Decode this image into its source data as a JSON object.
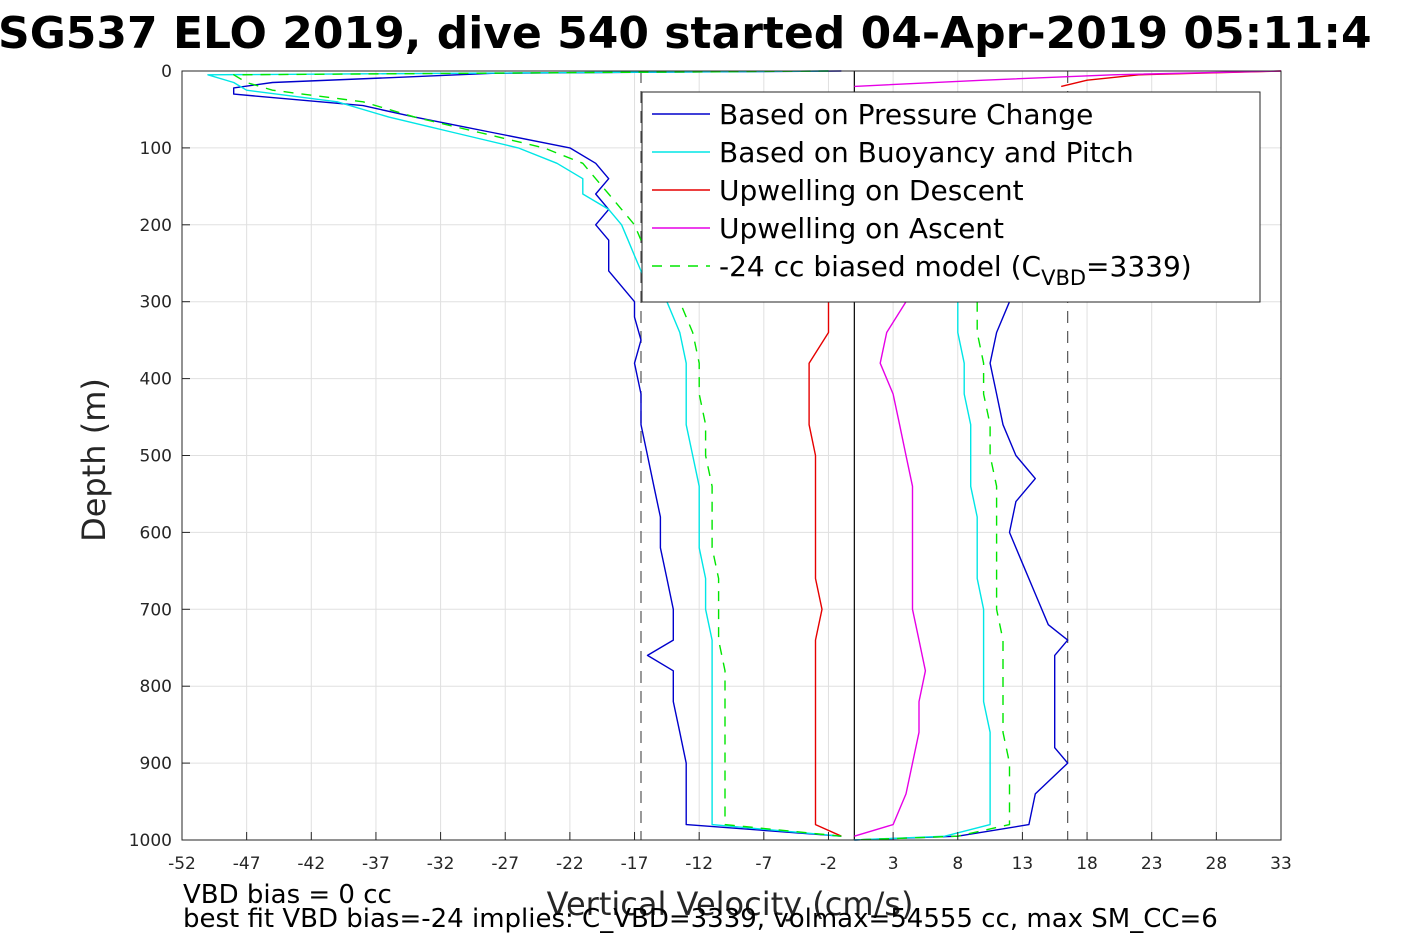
{
  "title": "SG537 ELO 2019, dive 540 started 04-Apr-2019 05:11:4",
  "notes": {
    "line1": "VBD bias = 0 cc",
    "line2": "best fit VBD bias=-24 implies: C_VBD=3339, volmax=54555 cc, max SM_CC=6"
  },
  "chart_data": {
    "type": "line",
    "title": "SG537 ELO 2019, dive 540 started 04-Apr-2019 05:11:4",
    "xlabel": "Vertical Velocity (cm/s)",
    "ylabel": "Depth (m)",
    "xlim": [
      -52,
      33
    ],
    "ylim": [
      1000,
      0
    ],
    "y_reversed": true,
    "grid": true,
    "legend_position": "top-right",
    "xticks": [
      "-52",
      "-47",
      "-42",
      "-37",
      "-32",
      "-27",
      "-22",
      "-17",
      "-12",
      "-7",
      "-2",
      "3",
      "8",
      "13",
      "18",
      "23",
      "28",
      "33"
    ],
    "yticks": [
      "0",
      "100",
      "200",
      "300",
      "400",
      "500",
      "600",
      "700",
      "800",
      "900",
      "1000"
    ],
    "reference_lines": [
      {
        "x": 0,
        "style": "solid",
        "color": "#000000"
      },
      {
        "x": -16.5,
        "style": "dashed",
        "color": "#555555"
      },
      {
        "x": 16.5,
        "style": "dashed",
        "color": "#555555"
      }
    ],
    "series": [
      {
        "name": "Based on Pressure Change",
        "color": "#0000cc",
        "dash": "",
        "segments": [
          {
            "depth": [
              0,
              3,
              8,
              15,
              22,
              30,
              45,
              60,
              80,
              100,
              120,
              140,
              160,
              180,
              200,
              220,
              240,
              260,
              280,
              300,
              320,
              350,
              380,
              420,
              460,
              500,
              540,
              580,
              620,
              660,
              700,
              740,
              760,
              780,
              820,
              860,
              900,
              940,
              980,
              995
            ],
            "v": [
              -1,
              -28,
              -35,
              -45,
              -48,
              -48,
              -38,
              -34,
              -28,
              -22,
              -20,
              -19,
              -20,
              -19,
              -20,
              -19,
              -19,
              -19,
              -18,
              -17,
              -17,
              -16.5,
              -17,
              -16.5,
              -16.5,
              -16,
              -15.5,
              -15,
              -15,
              -14.5,
              -14,
              -14,
              -16,
              -14,
              -14,
              -13.5,
              -13,
              -13,
              -13,
              -1
            ]
          },
          {
            "depth": [
              300,
              340,
              380,
              420,
              460,
              500,
              530,
              560,
              600,
              640,
              680,
              720,
              740,
              760,
              800,
              840,
              880,
              900,
              940,
              980,
              995,
              1000
            ],
            "v": [
              12,
              11,
              10.5,
              11,
              11.5,
              12.5,
              14,
              12.5,
              12,
              13,
              14,
              15,
              16.5,
              15.5,
              15.5,
              15.5,
              15.5,
              16.5,
              14,
              13.5,
              8,
              0
            ]
          }
        ]
      },
      {
        "name": "Based on Buoyancy and Pitch",
        "color": "#00e6e6",
        "dash": "",
        "segments": [
          {
            "depth": [
              0,
              5,
              15,
              25,
              40,
              60,
              80,
              100,
              120,
              140,
              160,
              180,
              200,
              220,
              240,
              260,
              280,
              300,
              340,
              380,
              420,
              460,
              500,
              540,
              580,
              620,
              660,
              700,
              740,
              780,
              820,
              860,
              900,
              940,
              980,
              995
            ],
            "v": [
              -2,
              -50,
              -48,
              -47,
              -40,
              -36,
              -31,
              -26,
              -23,
              -21,
              -21,
              -19,
              -18,
              -17.5,
              -17,
              -16.5,
              -16,
              -14.5,
              -13.5,
              -13,
              -13,
              -13,
              -12.5,
              -12,
              -12,
              -12,
              -11.5,
              -11.5,
              -11,
              -11,
              -11,
              -11,
              -11,
              -11,
              -11,
              -1
            ]
          },
          {
            "depth": [
              300,
              340,
              380,
              420,
              460,
              500,
              540,
              580,
              620,
              660,
              700,
              740,
              780,
              820,
              860,
              900,
              940,
              980,
              995,
              1000
            ],
            "v": [
              8,
              8,
              8.5,
              8.5,
              9,
              9,
              9,
              9.5,
              9.5,
              9.5,
              10,
              10,
              10,
              10,
              10.5,
              10.5,
              10.5,
              10.5,
              7,
              0
            ]
          }
        ]
      },
      {
        "name": "Upwelling on Descent",
        "color": "#e60000",
        "dash": "",
        "segments": [
          {
            "depth": [
              300,
              340,
              380,
              420,
              460,
              500,
              540,
              580,
              620,
              660,
              700,
              740,
              780,
              820,
              860,
              900,
              940,
              980,
              995
            ],
            "v": [
              -2,
              -2,
              -3.5,
              -3.5,
              -3.5,
              -3,
              -3,
              -3,
              -3,
              -3,
              -2.5,
              -3,
              -3,
              -3,
              -3,
              -3,
              -3,
              -3,
              -1
            ]
          },
          {
            "depth": [
              0,
              5,
              12,
              20
            ],
            "v": [
              33,
              22,
              18,
              16
            ]
          }
        ]
      },
      {
        "name": "Upwelling on Ascent",
        "color": "#e600e6",
        "dash": "",
        "segments": [
          {
            "depth": [
              300,
              340,
              380,
              420,
              460,
              500,
              540,
              580,
              620,
              660,
              700,
              740,
              780,
              820,
              860,
              900,
              940,
              980,
              995
            ],
            "v": [
              4,
              2.5,
              2,
              3,
              3.5,
              4,
              4.5,
              4.5,
              4.5,
              4.5,
              4.5,
              5,
              5.5,
              5,
              5,
              4.5,
              4,
              3,
              0
            ]
          },
          {
            "depth": [
              0,
              5,
              12,
              20
            ],
            "v": [
              33,
              20,
              10,
              0
            ]
          }
        ]
      },
      {
        "name": "-24 cc biased model (C_VBD=3339)",
        "color": "#00e600",
        "dash": "10,8",
        "segments": [
          {
            "depth": [
              0,
              5,
              15,
              25,
              40,
              60,
              80,
              100,
              120,
              140,
              160,
              180,
              200,
              220,
              240,
              260,
              280,
              300,
              340,
              380,
              420,
              460,
              500,
              540,
              580,
              620,
              660,
              700,
              740,
              780,
              820,
              860,
              900,
              940,
              980,
              995
            ],
            "v": [
              -2,
              -48,
              -47,
              -45,
              -38,
              -34,
              -29,
              -24,
              -21,
              -20,
              -19,
              -18,
              -17,
              -16.5,
              -16,
              -15.5,
              -14.5,
              -13.5,
              -12.5,
              -12,
              -12,
              -11.5,
              -11.5,
              -11,
              -11,
              -11,
              -10.5,
              -10.5,
              -10.5,
              -10,
              -10,
              -10,
              -10,
              -10,
              -10,
              -1
            ]
          },
          {
            "depth": [
              300,
              340,
              380,
              420,
              460,
              500,
              540,
              580,
              620,
              660,
              700,
              740,
              780,
              820,
              860,
              900,
              940,
              980,
              995,
              1000
            ],
            "v": [
              9.5,
              9.5,
              10,
              10,
              10.5,
              10.5,
              11,
              11,
              11,
              11,
              11,
              11.5,
              11.5,
              11.5,
              11.5,
              12,
              12,
              12,
              8,
              0
            ]
          }
        ]
      }
    ],
    "legend": [
      {
        "label": "Based on Pressure Change",
        "color": "#0000cc",
        "dash": ""
      },
      {
        "label": "Based on Buoyancy and Pitch",
        "color": "#00e6e6",
        "dash": ""
      },
      {
        "label": "Upwelling on Descent",
        "color": "#e60000",
        "dash": ""
      },
      {
        "label": "Upwelling on Ascent",
        "color": "#e600e6",
        "dash": ""
      },
      {
        "label_prefix": "-24 cc biased model (C",
        "label_sub": "VBD",
        "label_suffix": "=3339)",
        "color": "#00e600",
        "dash": "10,8"
      }
    ]
  }
}
